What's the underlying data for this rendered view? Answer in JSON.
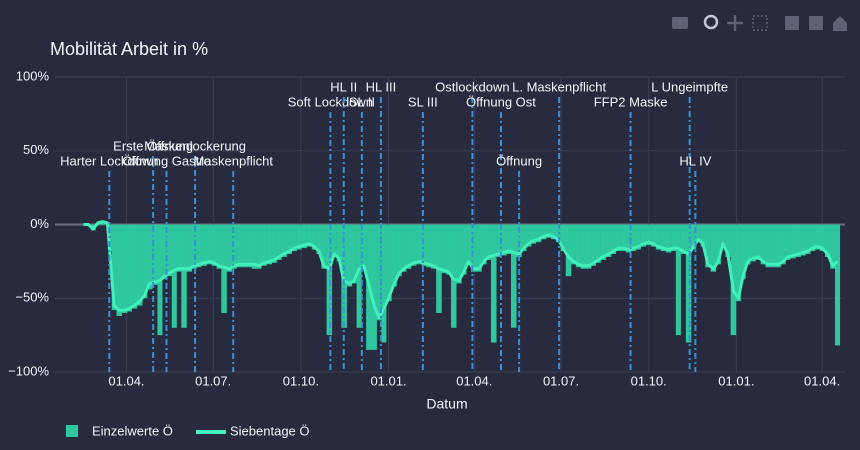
{
  "chart_data": {
    "type": "bar",
    "title": "Mobilität Arbeit in %",
    "x_label": "Datum",
    "x": [
      15,
      20,
      25,
      30,
      35,
      40,
      42,
      47,
      52,
      58,
      63,
      68,
      74,
      79,
      84,
      90,
      95,
      100,
      105,
      110,
      115,
      120,
      126,
      131,
      136,
      141,
      147,
      152,
      157,
      162,
      168,
      173,
      178,
      183,
      189,
      194,
      199,
      204,
      210,
      215,
      220,
      225,
      231,
      236,
      241,
      246,
      252,
      257,
      262,
      267,
      273,
      278,
      283,
      288,
      294,
      299,
      304,
      309,
      314,
      320,
      325,
      330,
      335,
      341,
      346,
      351,
      356,
      361,
      367,
      372,
      377,
      382,
      388,
      393,
      398,
      403,
      409,
      414,
      419,
      424,
      430,
      435,
      440,
      445,
      451,
      456,
      461,
      466,
      472,
      477,
      482,
      487,
      492,
      498,
      503,
      508,
      513,
      518,
      524,
      529,
      534,
      539,
      545,
      550,
      555,
      560,
      566,
      571,
      576,
      581,
      587,
      592,
      597,
      602,
      608,
      613,
      618,
      623,
      629,
      634,
      639,
      644,
      650,
      655,
      660,
      665,
      670,
      676,
      681,
      686,
      691,
      697,
      702,
      707,
      712,
      717,
      723,
      728,
      733,
      738,
      744,
      749,
      754,
      759,
      765,
      770,
      775,
      780,
      785,
      790,
      796,
      801,
      806
    ],
    "series": [
      {
        "name": "Einzelwerte Ö",
        "type": "bar",
        "color": "#2fc79d",
        "values": [
          0,
          0,
          -4,
          1,
          2,
          0,
          -18,
          -58,
          -62,
          -60,
          -59,
          -57,
          -55,
          -50,
          -44,
          -41,
          -75,
          -37,
          -35,
          -70,
          -32,
          -70,
          -32,
          -30,
          -29,
          -28,
          -27,
          -28,
          -30,
          -60,
          -32,
          -30,
          -29,
          -29,
          -29,
          -30,
          -30,
          -28,
          -27,
          -26,
          -24,
          -22,
          -20,
          -18,
          -17,
          -16,
          -15,
          -17,
          -20,
          -30,
          -75,
          -22,
          -25,
          -70,
          -42,
          -40,
          -70,
          -30,
          -85,
          -85,
          -65,
          -80,
          -52,
          -42,
          -35,
          -32,
          -30,
          -28,
          -27,
          -28,
          -29,
          -30,
          -60,
          -33,
          -34,
          -70,
          -40,
          -34,
          -27,
          -32,
          -32,
          -27,
          -24,
          -80,
          -22,
          -21,
          -20,
          -70,
          -22,
          -18,
          -15,
          -13,
          -12,
          -10,
          -9,
          -10,
          -12,
          -18,
          -35,
          -27,
          -29,
          -30,
          -30,
          -28,
          -26,
          -24,
          -22,
          -20,
          -18,
          -18,
          -19,
          -18,
          -17,
          -15,
          -14,
          -15,
          -17,
          -18,
          -19,
          -18,
          -75,
          -20,
          -80,
          -17,
          -12,
          -15,
          -29,
          -32,
          -27,
          -15,
          -22,
          -75,
          -52,
          -37,
          -27,
          -25,
          -24,
          -27,
          -29,
          -29,
          -29,
          -27,
          -24,
          -23,
          -22,
          -21,
          -20,
          -18,
          -17,
          -18,
          -22,
          -30,
          -82
        ]
      },
      {
        "name": "Siebentage Ö",
        "type": "line",
        "color": "#42f0b9",
        "values": [
          0,
          0,
          -3,
          1,
          2,
          1,
          -15,
          -55,
          -58,
          -58,
          -57,
          -55,
          -52,
          -48,
          -40,
          -39,
          -38,
          -35,
          -33,
          -31,
          -30,
          -30,
          -30,
          -28,
          -27,
          -26,
          -25,
          -26,
          -28,
          -29,
          -30,
          -28,
          -27,
          -27,
          -27,
          -27,
          -28,
          -26,
          -25,
          -24,
          -22,
          -20,
          -18,
          -16,
          -15,
          -14,
          -13,
          -15,
          -18,
          -28,
          -30,
          -20,
          -23,
          -38,
          -40,
          -38,
          -30,
          -28,
          -40,
          -55,
          -63,
          -57,
          -50,
          -40,
          -33,
          -30,
          -28,
          -26,
          -25,
          -26,
          -27,
          -28,
          -30,
          -31,
          -32,
          -37,
          -38,
          -32,
          -25,
          -30,
          -30,
          -25,
          -22,
          -21,
          -20,
          -19,
          -18,
          -19,
          -20,
          -16,
          -13,
          -11,
          -10,
          -8,
          -7,
          -8,
          -10,
          -16,
          -22,
          -25,
          -27,
          -28,
          -28,
          -26,
          -24,
          -22,
          -20,
          -18,
          -16,
          -16,
          -17,
          -16,
          -15,
          -13,
          -12,
          -13,
          -15,
          -16,
          -17,
          -16,
          -16,
          -18,
          -20,
          -15,
          -10,
          -13,
          -27,
          -30,
          -25,
          -13,
          -20,
          -45,
          -50,
          -35,
          -25,
          -23,
          -22,
          -25,
          -27,
          -27,
          -27,
          -25,
          -22,
          -21,
          -20,
          -19,
          -18,
          -16,
          -15,
          -16,
          -20,
          -28,
          -25
        ]
      }
    ],
    "xlim": [
      -15,
      814
    ],
    "xticks": [
      {
        "value": 60,
        "label": "01.04."
      },
      {
        "value": 151,
        "label": "01.07."
      },
      {
        "value": 243,
        "label": "01.10."
      },
      {
        "value": 335,
        "label": "01.01."
      },
      {
        "value": 425,
        "label": "01.04."
      },
      {
        "value": 516,
        "label": "01.07."
      },
      {
        "value": 608,
        "label": "01.10."
      },
      {
        "value": 700,
        "label": "01.01."
      },
      {
        "value": 790,
        "label": "01.04."
      }
    ],
    "ylim": [
      -100,
      100
    ],
    "yticks": [
      {
        "value": -100,
        "label": "−100%"
      },
      {
        "value": -50,
        "label": "−50%"
      },
      {
        "value": 0,
        "label": "0%"
      },
      {
        "value": 50,
        "label": "50%"
      },
      {
        "value": 100,
        "label": "100%"
      }
    ],
    "grid": true,
    "events": [
      {
        "label": "Harter Lockdown",
        "x": 42
      },
      {
        "label": "Erste Öffnung",
        "x": 88
      },
      {
        "label": "Öffnung Gastro",
        "x": 102
      },
      {
        "label": "Maskenlockerung",
        "x": 132
      },
      {
        "label": "Maskenpflicht",
        "x": 172
      },
      {
        "label": "Soft Lockdown",
        "x": 274
      },
      {
        "label": "HL II",
        "x": 288
      },
      {
        "label": "SL II",
        "x": 307
      },
      {
        "label": "HL III",
        "x": 327
      },
      {
        "label": "SL III",
        "x": 371
      },
      {
        "label": "Ostlockdown",
        "x": 423
      },
      {
        "label": "Öffnung Ost",
        "x": 453
      },
      {
        "label": "Öffnung",
        "x": 472
      },
      {
        "label": "L. Maskenpflicht",
        "x": 514
      },
      {
        "label": "FFP2 Maske",
        "x": 589
      },
      {
        "label": "L Ungeimpfte",
        "x": 651
      },
      {
        "label": "HL IV",
        "x": 657
      }
    ]
  }
}
